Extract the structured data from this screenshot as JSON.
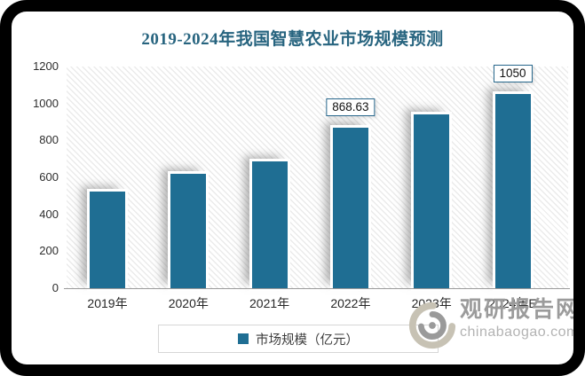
{
  "chart": {
    "title": "2019-2024年我国智慧农业市场规模预测",
    "legend_label": "市场规模（亿元）",
    "watermark": {
      "name": "观研报告网",
      "domain": "chinabaogao.com"
    },
    "colors": {
      "bar": "#1f6e93",
      "title_text": "#27647f",
      "label_box_border": "#27678c",
      "watermark_text": "#9b9b9b"
    }
  },
  "chart_data": {
    "type": "bar",
    "title": "2019-2024年我国智慧农业市场规模预测",
    "categories": [
      "2019年",
      "2020年",
      "2021年",
      "2022年",
      "2023年",
      "2024年E"
    ],
    "values": [
      525,
      620,
      685,
      868.63,
      940,
      1050
    ],
    "bar_labels": [
      "",
      "",
      "",
      "868.63",
      "",
      "1050"
    ],
    "yticks": [
      0,
      200,
      400,
      600,
      800,
      1000,
      1200
    ],
    "ylim": [
      0,
      1200
    ],
    "xlabel": "",
    "ylabel": "",
    "legend": [
      "市场规模（亿元）"
    ],
    "legend_position": "bottom",
    "grid": false
  }
}
